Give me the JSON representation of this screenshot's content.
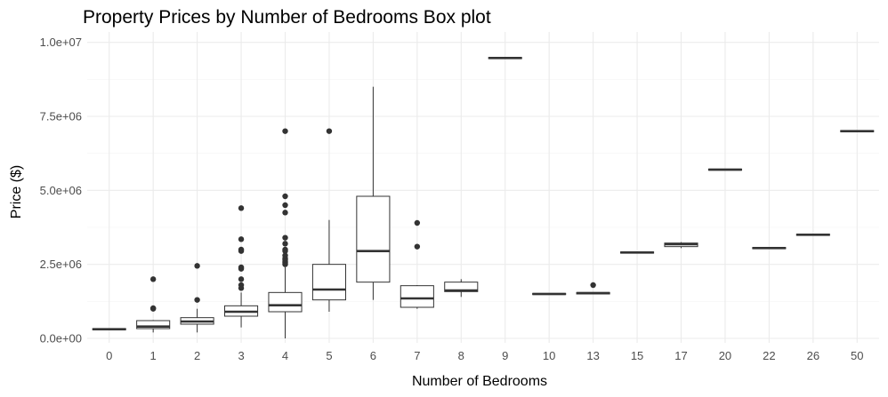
{
  "chart_data": {
    "type": "boxplot",
    "title": "Property Prices by Number of Bedrooms Box plot",
    "xlabel": "Number of Bedrooms",
    "ylabel": "Price ($)",
    "ylim": [
      -150000,
      10350000
    ],
    "y_ticks": [
      0,
      2500000,
      5000000,
      7500000,
      10000000
    ],
    "y_tick_labels": [
      "0.0e+00",
      "2.5e+06",
      "5.0e+06",
      "7.5e+06",
      "1.0e+07"
    ],
    "categories": [
      "0",
      "1",
      "2",
      "3",
      "4",
      "5",
      "6",
      "7",
      "8",
      "9",
      "10",
      "13",
      "15",
      "17",
      "20",
      "22",
      "26",
      "50"
    ],
    "boxes": [
      {
        "q1": 290000,
        "median": 310000,
        "q3": 330000,
        "whisker_low": 290000,
        "whisker_high": 330000,
        "outliers": []
      },
      {
        "q1": 330000,
        "median": 400000,
        "q3": 600000,
        "whisker_low": 200000,
        "whisker_high": 620000,
        "outliers": [
          1000000,
          1020000,
          2000000
        ]
      },
      {
        "q1": 480000,
        "median": 570000,
        "q3": 700000,
        "whisker_low": 200000,
        "whisker_high": 1000000,
        "outliers": [
          1300000,
          2450000
        ]
      },
      {
        "q1": 750000,
        "median": 900000,
        "q3": 1100000,
        "whisker_low": 370000,
        "whisker_high": 1550000,
        "outliers": [
          1700000,
          1800000,
          2000000,
          2350000,
          2400000,
          2950000,
          3000000,
          3350000,
          4400000
        ]
      },
      {
        "q1": 900000,
        "median": 1120000,
        "q3": 1550000,
        "whisker_low": 0,
        "whisker_high": 2400000,
        "outliers": [
          2500000,
          2550000,
          2600000,
          2650000,
          2700000,
          2800000,
          2950000,
          3000000,
          3200000,
          3400000,
          4250000,
          4500000,
          4800000,
          7000000
        ]
      },
      {
        "q1": 1300000,
        "median": 1650000,
        "q3": 2500000,
        "whisker_low": 900000,
        "whisker_high": 4000000,
        "outliers": [
          7000000
        ]
      },
      {
        "q1": 1900000,
        "median": 2950000,
        "q3": 4800000,
        "whisker_low": 1300000,
        "whisker_high": 8500000,
        "outliers": []
      },
      {
        "q1": 1050000,
        "median": 1350000,
        "q3": 1780000,
        "whisker_low": 1000000,
        "whisker_high": 1800000,
        "outliers": [
          3100000,
          3900000
        ]
      },
      {
        "q1": 1580000,
        "median": 1620000,
        "q3": 1900000,
        "whisker_low": 1400000,
        "whisker_high": 2000000,
        "outliers": []
      },
      {
        "q1": 9450000,
        "median": 9470000,
        "q3": 9490000,
        "whisker_low": 9450000,
        "whisker_high": 9490000,
        "outliers": []
      },
      {
        "q1": 1480000,
        "median": 1500000,
        "q3": 1520000,
        "whisker_low": 1480000,
        "whisker_high": 1520000,
        "outliers": []
      },
      {
        "q1": 1500000,
        "median": 1530000,
        "q3": 1550000,
        "whisker_low": 1500000,
        "whisker_high": 1550000,
        "outliers": [
          1800000
        ]
      },
      {
        "q1": 2880000,
        "median": 2900000,
        "q3": 2920000,
        "whisker_low": 2880000,
        "whisker_high": 2920000,
        "outliers": []
      },
      {
        "q1": 3100000,
        "median": 3180000,
        "q3": 3220000,
        "whisker_low": 3050000,
        "whisker_high": 3250000,
        "outliers": []
      },
      {
        "q1": 5680000,
        "median": 5700000,
        "q3": 5720000,
        "whisker_low": 5680000,
        "whisker_high": 5720000,
        "outliers": []
      },
      {
        "q1": 3030000,
        "median": 3050000,
        "q3": 3070000,
        "whisker_low": 3030000,
        "whisker_high": 3070000,
        "outliers": []
      },
      {
        "q1": 3480000,
        "median": 3500000,
        "q3": 3520000,
        "whisker_low": 3480000,
        "whisker_high": 3520000,
        "outliers": []
      },
      {
        "q1": 6980000,
        "median": 7000000,
        "q3": 7020000,
        "whisker_low": 6980000,
        "whisker_high": 7020000,
        "outliers": []
      }
    ],
    "grid": true,
    "legend": "none",
    "colors": {
      "box_fill": "#ffffff",
      "box_stroke": "#333333",
      "outlier": "#333333",
      "grid": "#ebebeb",
      "background": "#ffffff"
    }
  }
}
